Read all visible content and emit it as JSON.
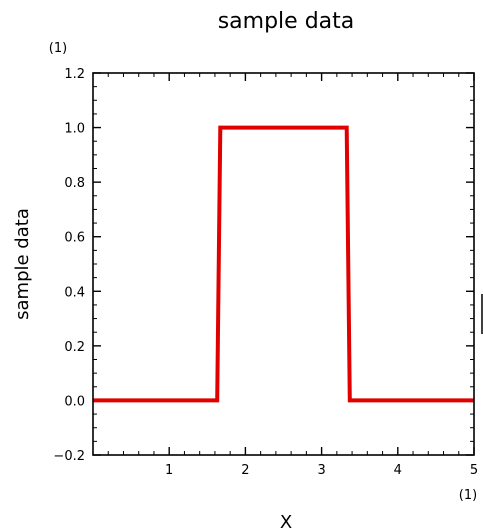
{
  "chart_data": {
    "type": "line",
    "title": "sample data",
    "xlabel": "X",
    "ylabel": "sample data",
    "x_unit": "(1)",
    "y_unit": "(1)",
    "xlim": [
      0,
      5
    ],
    "ylim": [
      -0.2,
      1.2
    ],
    "x_ticks": [
      1,
      2,
      3,
      4,
      5
    ],
    "y_ticks": [
      -0.2,
      0.0,
      0.2,
      0.4,
      0.6,
      0.8,
      1.0,
      1.2
    ],
    "y_tick_labels": [
      "−0.2",
      "0.0",
      "0.2",
      "0.4",
      "0.6",
      "0.8",
      "1.0",
      "1.2"
    ],
    "x_minor_step": 0.2,
    "y_minor_step": 0.05,
    "grid": false,
    "series": [
      {
        "color": "#e00000",
        "x": [
          0,
          1.63,
          1.67,
          3.33,
          3.37,
          5
        ],
        "y": [
          0,
          0,
          1,
          1,
          0,
          0
        ]
      }
    ]
  }
}
